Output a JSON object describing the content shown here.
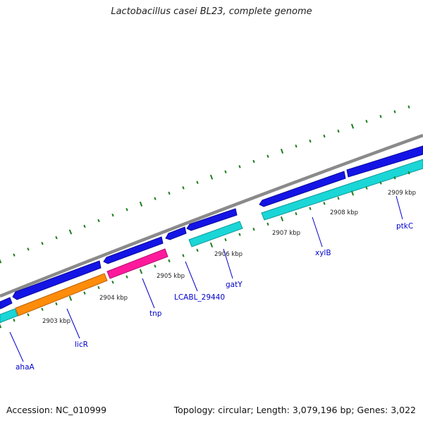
{
  "title": "Lactobacillus casei BL23, complete genome",
  "footer": {
    "accession": "Accession: NC_010999",
    "topology": "Topology: circular; Length: 3,079,196 bp; Genes: 3,022"
  },
  "colors": {
    "backbone": "#8a8a8a",
    "tick": "#1e7d1e",
    "forward_gene": "#1414e6",
    "rna_gene": "#1ad6d6",
    "transposase": "#ff1a9c",
    "regulator": "#ff8c0a",
    "label": "#0000cc"
  },
  "scale_labels": [
    "2903 kbp",
    "2904 kbp",
    "2905 kbp",
    "2906 kbp",
    "2907 kbp",
    "2908 kbp",
    "2909 kbp"
  ],
  "genes": [
    {
      "name": "ahaA"
    },
    {
      "name": "licR"
    },
    {
      "name": "tnp"
    },
    {
      "name": "LCABL_29440"
    },
    {
      "name": "gatY"
    },
    {
      "name": "xylB"
    },
    {
      "name": "ptkC"
    }
  ]
}
